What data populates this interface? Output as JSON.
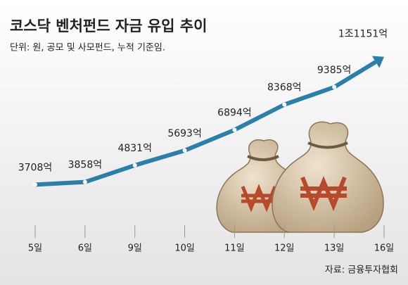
{
  "chart_data": {
    "type": "line",
    "title": "코스닥 벤처펀드 자금 유입 추이",
    "subtitle": "단위: 원, 공모 및 사모펀드, 누적 기준임.",
    "source": "자료: 금융투자협회",
    "categories": [
      "5일",
      "6일",
      "9일",
      "10일",
      "11일",
      "12일",
      "13일",
      "16일"
    ],
    "values": [
      3708,
      3858,
      4831,
      5693,
      6894,
      8368,
      9385,
      11151
    ],
    "value_labels": [
      "3708억",
      "3858억",
      "4831억",
      "5693억",
      "6894억",
      "8368억",
      "9385억",
      "1조1151억"
    ],
    "color": "#2a7fab",
    "ylim": [
      2000,
      12000
    ]
  }
}
